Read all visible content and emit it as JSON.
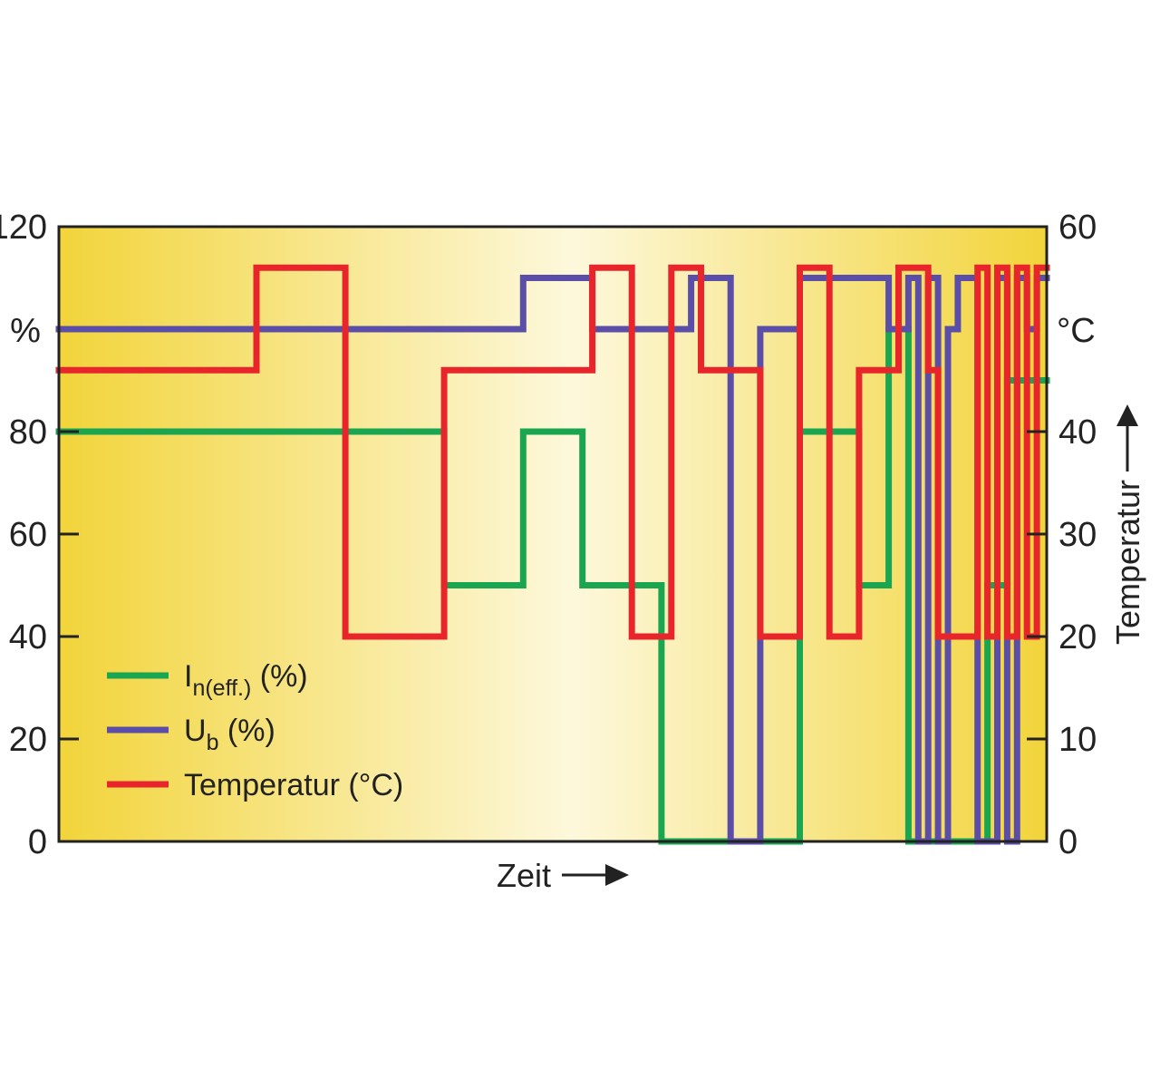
{
  "chart_data": {
    "type": "line",
    "step": true,
    "title": "",
    "xlabel": "Zeit",
    "left_axis": {
      "unit": "%",
      "ticks": [
        0,
        20,
        40,
        60,
        80,
        120
      ],
      "ylim": [
        0,
        120
      ]
    },
    "right_axis": {
      "unit": "°C",
      "title": "Temperatur",
      "ticks": [
        0,
        10,
        20,
        30,
        40,
        60
      ],
      "ylim": [
        0,
        60
      ]
    },
    "x": [
      0,
      1,
      2,
      3,
      4,
      5,
      6,
      7,
      8,
      9,
      10,
      11,
      12,
      13,
      14,
      15,
      16,
      17,
      18,
      19,
      20,
      21,
      22,
      23,
      24,
      25,
      26,
      27,
      28,
      29,
      30,
      31,
      32,
      33,
      34,
      35,
      36,
      37,
      38,
      39,
      40,
      41,
      42,
      43,
      44,
      45,
      46,
      47,
      48,
      49,
      50,
      51,
      52,
      53,
      54,
      55,
      56,
      57,
      58,
      59,
      60,
      61,
      62,
      63,
      64,
      65,
      66,
      67,
      68,
      69,
      70,
      71,
      72,
      73,
      74,
      75,
      76,
      77,
      78,
      79,
      80,
      81,
      82,
      83,
      84,
      85,
      86,
      87,
      88,
      89,
      90,
      91,
      92,
      93,
      94,
      95,
      96,
      97,
      98,
      99,
      100
    ],
    "background": {
      "edge": "#f2d43a",
      "center": "#fdf8dc"
    },
    "legend_position": "bottom-left",
    "series": [
      {
        "name": "I",
        "name_sub": "n(eff.)",
        "name_suffix": " (%)",
        "axis": "left",
        "color": "#1aa650",
        "points": [
          [
            0,
            80
          ],
          [
            39,
            80
          ],
          [
            39,
            50
          ],
          [
            47,
            50
          ],
          [
            47,
            80
          ],
          [
            53,
            80
          ],
          [
            53,
            50
          ],
          [
            61,
            50
          ],
          [
            61,
            0
          ],
          [
            68,
            0
          ],
          [
            68,
            0
          ],
          [
            75,
            0
          ],
          [
            75,
            80
          ],
          [
            81,
            80
          ],
          [
            81,
            50
          ],
          [
            84,
            50
          ],
          [
            84,
            100
          ],
          [
            86,
            100
          ],
          [
            86,
            0
          ],
          [
            94,
            0
          ],
          [
            94,
            50
          ],
          [
            96,
            50
          ],
          [
            96,
            90
          ],
          [
            100,
            90
          ]
        ]
      },
      {
        "name": "U",
        "name_sub": "b",
        "name_suffix": " (%)",
        "axis": "left",
        "color": "#5b4ea8",
        "points": [
          [
            0,
            100
          ],
          [
            47,
            100
          ],
          [
            47,
            110
          ],
          [
            54,
            110
          ],
          [
            54,
            100
          ],
          [
            64,
            100
          ],
          [
            64,
            110
          ],
          [
            68,
            110
          ],
          [
            68,
            0
          ],
          [
            71,
            0
          ],
          [
            71,
            100
          ],
          [
            75,
            100
          ],
          [
            75,
            110
          ],
          [
            84,
            110
          ],
          [
            84,
            100
          ],
          [
            86,
            100
          ],
          [
            86,
            110
          ],
          [
            87,
            110
          ],
          [
            87,
            0
          ],
          [
            88,
            0
          ],
          [
            88,
            110
          ],
          [
            89,
            110
          ],
          [
            89,
            0
          ],
          [
            90,
            0
          ],
          [
            90,
            100
          ],
          [
            91,
            100
          ],
          [
            91,
            110
          ],
          [
            93,
            110
          ],
          [
            93,
            0
          ],
          [
            95,
            0
          ],
          [
            95,
            110
          ],
          [
            96,
            110
          ],
          [
            96,
            0
          ],
          [
            97,
            0
          ],
          [
            97,
            110
          ],
          [
            98,
            110
          ],
          [
            98,
            100
          ],
          [
            99,
            100
          ],
          [
            99,
            110
          ],
          [
            100,
            110
          ]
        ]
      },
      {
        "name": "Temperatur",
        "name_sub": "",
        "name_suffix": " (°C)",
        "axis": "right",
        "color": "#e8252b",
        "points": [
          [
            0,
            46
          ],
          [
            20,
            46
          ],
          [
            20,
            56
          ],
          [
            29,
            56
          ],
          [
            29,
            20
          ],
          [
            39,
            20
          ],
          [
            39,
            46
          ],
          [
            54,
            46
          ],
          [
            54,
            56
          ],
          [
            58,
            56
          ],
          [
            58,
            20
          ],
          [
            62,
            20
          ],
          [
            62,
            56
          ],
          [
            65,
            56
          ],
          [
            65,
            46
          ],
          [
            71,
            46
          ],
          [
            71,
            20
          ],
          [
            75,
            20
          ],
          [
            75,
            56
          ],
          [
            78,
            56
          ],
          [
            78,
            20
          ],
          [
            81,
            20
          ],
          [
            81,
            46
          ],
          [
            85,
            46
          ],
          [
            85,
            56
          ],
          [
            88,
            56
          ],
          [
            88,
            46
          ],
          [
            89,
            46
          ],
          [
            89,
            20
          ],
          [
            93,
            20
          ],
          [
            93,
            56
          ],
          [
            94,
            56
          ],
          [
            94,
            20
          ],
          [
            95,
            20
          ],
          [
            95,
            56
          ],
          [
            96,
            56
          ],
          [
            96,
            20
          ],
          [
            97,
            20
          ],
          [
            97,
            56
          ],
          [
            98,
            56
          ],
          [
            98,
            20
          ],
          [
            99,
            20
          ],
          [
            99,
            56
          ],
          [
            100,
            56
          ]
        ]
      }
    ]
  }
}
